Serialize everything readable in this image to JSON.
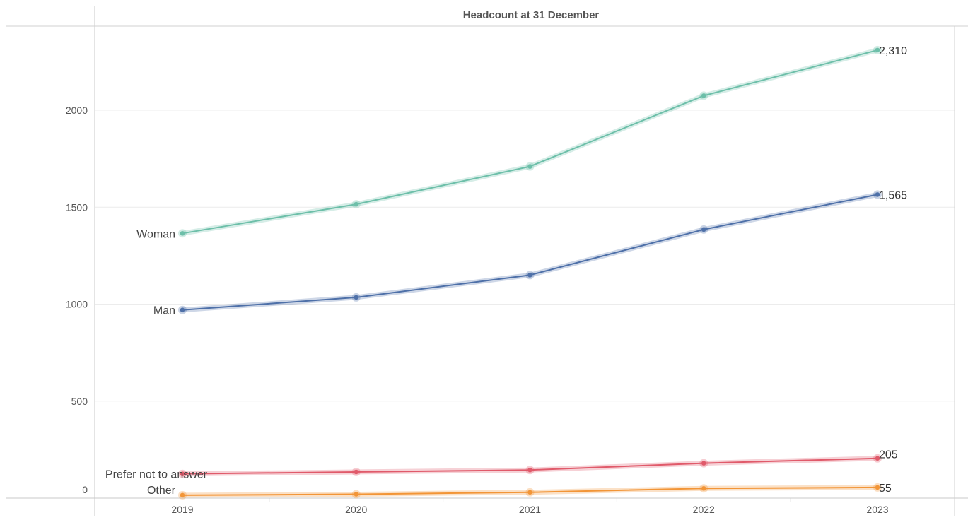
{
  "chart_data": {
    "type": "line",
    "title": "Headcount at 31 December",
    "xlabel": "",
    "ylabel": "",
    "categories": [
      "2019",
      "2020",
      "2021",
      "2022",
      "2023"
    ],
    "ylim": [
      0,
      2350
    ],
    "yticks": [
      "0",
      "500",
      "1000",
      "1500",
      "2000"
    ],
    "grid": true,
    "legend": "none (series labeled inline at start)",
    "series": [
      {
        "name": "Woman",
        "color": "#6dbfa9",
        "values": [
          1365,
          1515,
          1710,
          2075,
          2310
        ],
        "end_label": "2,310"
      },
      {
        "name": "Man",
        "color": "#4e70a8",
        "values": [
          970,
          1035,
          1150,
          1385,
          1565
        ],
        "end_label": "1,565"
      },
      {
        "name": "Prefer not to answer",
        "color": "#e05a6a",
        "values": [
          125,
          135,
          145,
          180,
          205
        ],
        "end_label": "205"
      },
      {
        "name": "Other",
        "color": "#f29537",
        "values": [
          15,
          20,
          30,
          50,
          55
        ],
        "end_label": "55"
      }
    ]
  }
}
